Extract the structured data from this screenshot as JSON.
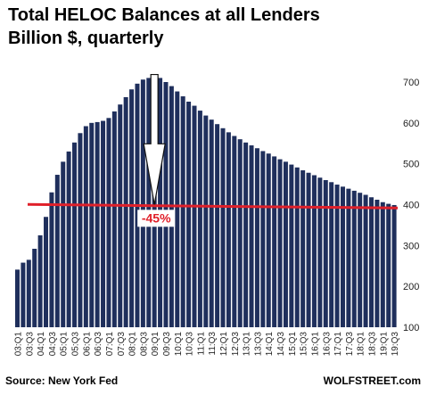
{
  "chart_data": {
    "type": "bar",
    "title": "Total HELOC Balances at all Lenders",
    "subtitle": "Billion $, quarterly",
    "source": "Source: New York Fed",
    "brand": "WOLFSTREET.com",
    "annotation": "-45%",
    "reference_line_value": 396,
    "ylim": [
      100,
      720
    ],
    "yticks": [
      100,
      200,
      300,
      400,
      500,
      600,
      700
    ],
    "y_axis_side": "right",
    "bar_color": "#1f2f5c",
    "line_color": "#e0202a",
    "arrow_from_period": "09:Q1",
    "categories": [
      "03:Q1",
      "03:Q2",
      "03:Q3",
      "03:Q4",
      "04:Q1",
      "04:Q2",
      "04:Q3",
      "04:Q4",
      "05:Q1",
      "05:Q2",
      "05:Q3",
      "05:Q4",
      "06:Q1",
      "06:Q2",
      "06:Q3",
      "06:Q4",
      "07:Q1",
      "07:Q2",
      "07:Q3",
      "07:Q4",
      "08:Q1",
      "08:Q2",
      "08:Q3",
      "08:Q4",
      "09:Q1",
      "09:Q2",
      "09:Q3",
      "09:Q4",
      "10:Q1",
      "10:Q2",
      "10:Q3",
      "10:Q4",
      "11:Q1",
      "11:Q2",
      "11:Q3",
      "11:Q4",
      "12:Q1",
      "12:Q2",
      "12:Q3",
      "12:Q4",
      "13:Q1",
      "13:Q2",
      "13:Q3",
      "13:Q4",
      "14:Q1",
      "14:Q2",
      "14:Q3",
      "14:Q4",
      "15:Q1",
      "15:Q2",
      "15:Q3",
      "15:Q4",
      "16:Q1",
      "16:Q2",
      "16:Q3",
      "16:Q4",
      "17:Q1",
      "17:Q2",
      "17:Q3",
      "17:Q4",
      "18:Q1",
      "18:Q2",
      "18:Q3",
      "18:Q4",
      "19:Q1",
      "19:Q2",
      "19:Q3"
    ],
    "tick_labels": [
      "03:Q1",
      "03:Q3",
      "04:Q1",
      "04:Q3",
      "05:Q1",
      "05:Q3",
      "06:Q1",
      "06:Q3",
      "07:Q1",
      "07:Q3",
      "08:Q1",
      "08:Q3",
      "09:Q1",
      "09:Q3",
      "10:Q1",
      "10:Q3",
      "11:Q1",
      "11:Q3",
      "12:Q1",
      "12:Q3",
      "13:Q1",
      "13:Q3",
      "14:Q1",
      "14:Q3",
      "15:Q1",
      "15:Q3",
      "16:Q1",
      "16:Q3",
      "17:Q1",
      "17:Q3",
      "18:Q1",
      "18:Q3",
      "19:Q1",
      "19:Q3"
    ],
    "values": [
      241,
      258,
      265,
      292,
      325,
      370,
      430,
      473,
      505,
      530,
      552,
      575,
      592,
      600,
      602,
      605,
      612,
      628,
      645,
      663,
      682,
      696,
      706,
      710,
      714,
      710,
      700,
      690,
      677,
      665,
      652,
      642,
      630,
      618,
      608,
      597,
      587,
      577,
      568,
      560,
      552,
      545,
      538,
      531,
      525,
      518,
      511,
      505,
      498,
      491,
      484,
      478,
      472,
      466,
      460,
      455,
      449,
      444,
      439,
      434,
      429,
      424,
      418,
      412,
      406,
      402,
      399
    ]
  }
}
